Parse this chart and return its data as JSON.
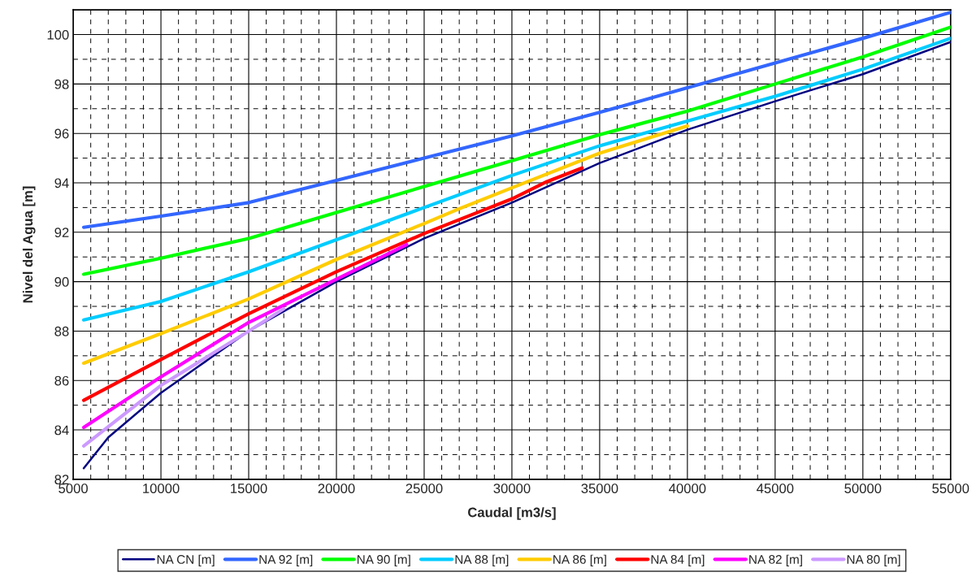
{
  "chart_data": {
    "type": "line",
    "xlabel": "Caudal [m3/s]",
    "ylabel": "Nivel del Agua [m]",
    "xlim": [
      5000,
      55000
    ],
    "ylim": [
      82,
      101
    ],
    "xticks": [
      5000,
      10000,
      15000,
      20000,
      25000,
      30000,
      35000,
      40000,
      45000,
      50000,
      55000
    ],
    "yticks": [
      82,
      84,
      86,
      88,
      90,
      92,
      94,
      96,
      98,
      100
    ],
    "grid": true,
    "legend": "bottom",
    "marker": "none",
    "line_style": "solid",
    "series": [
      {
        "name": "NA CN [m]",
        "color": "#000080",
        "x": [
          5600,
          7000,
          10000,
          12000,
          15000,
          20000,
          25000,
          30000,
          35000,
          40000,
          45000,
          50000,
          55000
        ],
        "values": [
          82.45,
          83.7,
          85.5,
          86.5,
          88.0,
          90.0,
          91.75,
          93.2,
          94.8,
          96.15,
          97.3,
          98.4,
          99.7
        ]
      },
      {
        "name": "NA 92 [m]",
        "color": "#3366ff",
        "x": [
          5600,
          10000,
          15000,
          20000,
          25000,
          30000,
          35000,
          40000,
          45000,
          50000,
          55000
        ],
        "values": [
          92.2,
          92.65,
          93.2,
          94.1,
          95.0,
          95.9,
          96.85,
          97.85,
          98.85,
          99.85,
          100.9
        ]
      },
      {
        "name": "NA 90 [m]",
        "color": "#00ff00",
        "x": [
          5600,
          10000,
          15000,
          20000,
          25000,
          30000,
          35000,
          40000,
          45000,
          50000,
          55000
        ],
        "values": [
          90.3,
          90.95,
          91.75,
          92.8,
          93.85,
          94.9,
          95.95,
          96.9,
          98.0,
          99.1,
          100.3
        ]
      },
      {
        "name": "NA 88 [m]",
        "color": "#00ccff",
        "x": [
          5600,
          10000,
          15000,
          20000,
          25000,
          30000,
          35000,
          40000,
          45000,
          50000,
          55000
        ],
        "values": [
          88.45,
          89.2,
          90.4,
          91.7,
          93.0,
          94.3,
          95.5,
          96.5,
          97.5,
          98.6,
          99.85
        ]
      },
      {
        "name": "NA 86 [m]",
        "color": "#ffcc00",
        "x": [
          5600,
          10000,
          15000,
          20000,
          25000,
          27000,
          30000,
          35000,
          40000
        ],
        "values": [
          86.7,
          87.9,
          89.3,
          90.9,
          92.35,
          92.95,
          93.8,
          95.2,
          96.3
        ]
      },
      {
        "name": "NA 84 [m]",
        "color": "#ff0000",
        "x": [
          5600,
          10000,
          15000,
          20000,
          25000,
          30000,
          32000,
          34000
        ],
        "values": [
          85.2,
          86.85,
          88.7,
          90.4,
          91.95,
          93.35,
          94.05,
          94.6
        ]
      },
      {
        "name": "NA 82 [m]",
        "color": "#ff00ff",
        "x": [
          5600,
          10000,
          15000,
          20000,
          24000
        ],
        "values": [
          84.1,
          86.15,
          88.35,
          90.1,
          91.5
        ]
      },
      {
        "name": "NA 80 [m]",
        "color": "#cc99ff",
        "x": [
          5600,
          10000,
          15000,
          17000
        ],
        "values": [
          83.35,
          85.8,
          88.0,
          88.9
        ]
      }
    ]
  }
}
